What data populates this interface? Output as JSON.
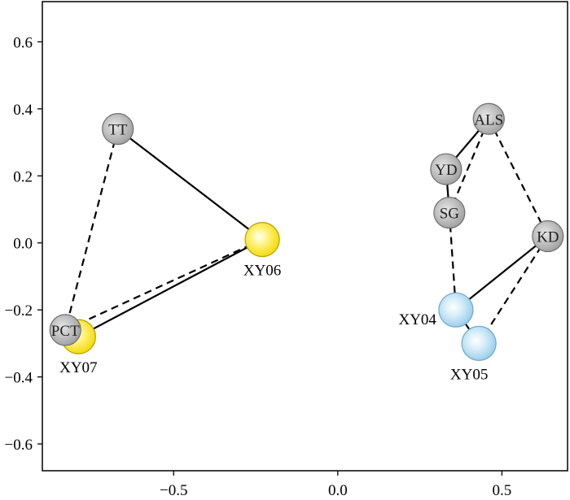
{
  "chart_data": {
    "type": "scatter",
    "xlim": [
      -0.9,
      0.7
    ],
    "ylim": [
      -0.68,
      0.72
    ],
    "grid": false,
    "x_ticks": [
      {
        "value": -0.5,
        "label": "−0.5"
      },
      {
        "value": 0.0,
        "label": "0.0"
      },
      {
        "value": 0.5,
        "label": "0.5"
      }
    ],
    "y_ticks": [
      {
        "value": 0.6,
        "label": "0.6"
      },
      {
        "value": 0.4,
        "label": "0.4"
      },
      {
        "value": 0.2,
        "label": "0.2"
      },
      {
        "value": 0.0,
        "label": "0.0"
      },
      {
        "value": -0.2,
        "label": "−0.2"
      },
      {
        "value": -0.4,
        "label": "−0.4"
      },
      {
        "value": -0.6,
        "label": "−0.6"
      }
    ],
    "colors": {
      "gray_node": "#a6a6a6",
      "yellow_node": "#f7e21a",
      "blue_node": "#a9d5ee",
      "line": "#000000"
    },
    "points": [
      {
        "id": "TT",
        "label": "TT",
        "x": -0.67,
        "y": 0.34,
        "group": "gray",
        "label_pos": "inside"
      },
      {
        "id": "PCT",
        "label": "PCT",
        "x": -0.83,
        "y": -0.26,
        "group": "gray",
        "label_pos": "inside"
      },
      {
        "id": "ALS",
        "label": "ALS",
        "x": 0.46,
        "y": 0.37,
        "group": "gray",
        "label_pos": "inside"
      },
      {
        "id": "YD",
        "label": "YD",
        "x": 0.33,
        "y": 0.22,
        "group": "gray",
        "label_pos": "inside"
      },
      {
        "id": "SG",
        "label": "SG",
        "x": 0.34,
        "y": 0.09,
        "group": "gray",
        "label_pos": "inside"
      },
      {
        "id": "KD",
        "label": "KD",
        "x": 0.64,
        "y": 0.02,
        "group": "gray",
        "label_pos": "inside"
      },
      {
        "id": "XY06",
        "label": "XY06",
        "x": -0.23,
        "y": 0.01,
        "group": "yellow",
        "label_pos": "below"
      },
      {
        "id": "XY07",
        "label": "XY07",
        "x": -0.79,
        "y": -0.28,
        "group": "yellow",
        "label_pos": "below"
      },
      {
        "id": "XY04",
        "label": "XY04",
        "x": 0.36,
        "y": -0.2,
        "group": "blue",
        "label_pos": "left"
      },
      {
        "id": "XY05",
        "label": "XY05",
        "x": 0.43,
        "y": -0.3,
        "group": "blue",
        "label_pos": "below-left"
      }
    ],
    "links": [
      {
        "from": "TT",
        "to": "XY06",
        "style": "solid"
      },
      {
        "from": "TT",
        "to": "PCT",
        "style": "dashed"
      },
      {
        "from": "XY06",
        "to": "XY07",
        "style": "solid"
      },
      {
        "from": "XY06",
        "to": "PCT",
        "style": "dashed"
      },
      {
        "from": "ALS",
        "to": "YD",
        "style": "solid"
      },
      {
        "from": "ALS",
        "to": "SG",
        "style": "dashed"
      },
      {
        "from": "ALS",
        "to": "KD",
        "style": "dashed"
      },
      {
        "from": "YD",
        "to": "SG",
        "style": "solid"
      },
      {
        "from": "SG",
        "to": "XY04",
        "style": "dashed"
      },
      {
        "from": "KD",
        "to": "XY04",
        "style": "solid"
      },
      {
        "from": "KD",
        "to": "XY05",
        "style": "dashed"
      },
      {
        "from": "XY04",
        "to": "XY05",
        "style": "solid"
      }
    ]
  }
}
